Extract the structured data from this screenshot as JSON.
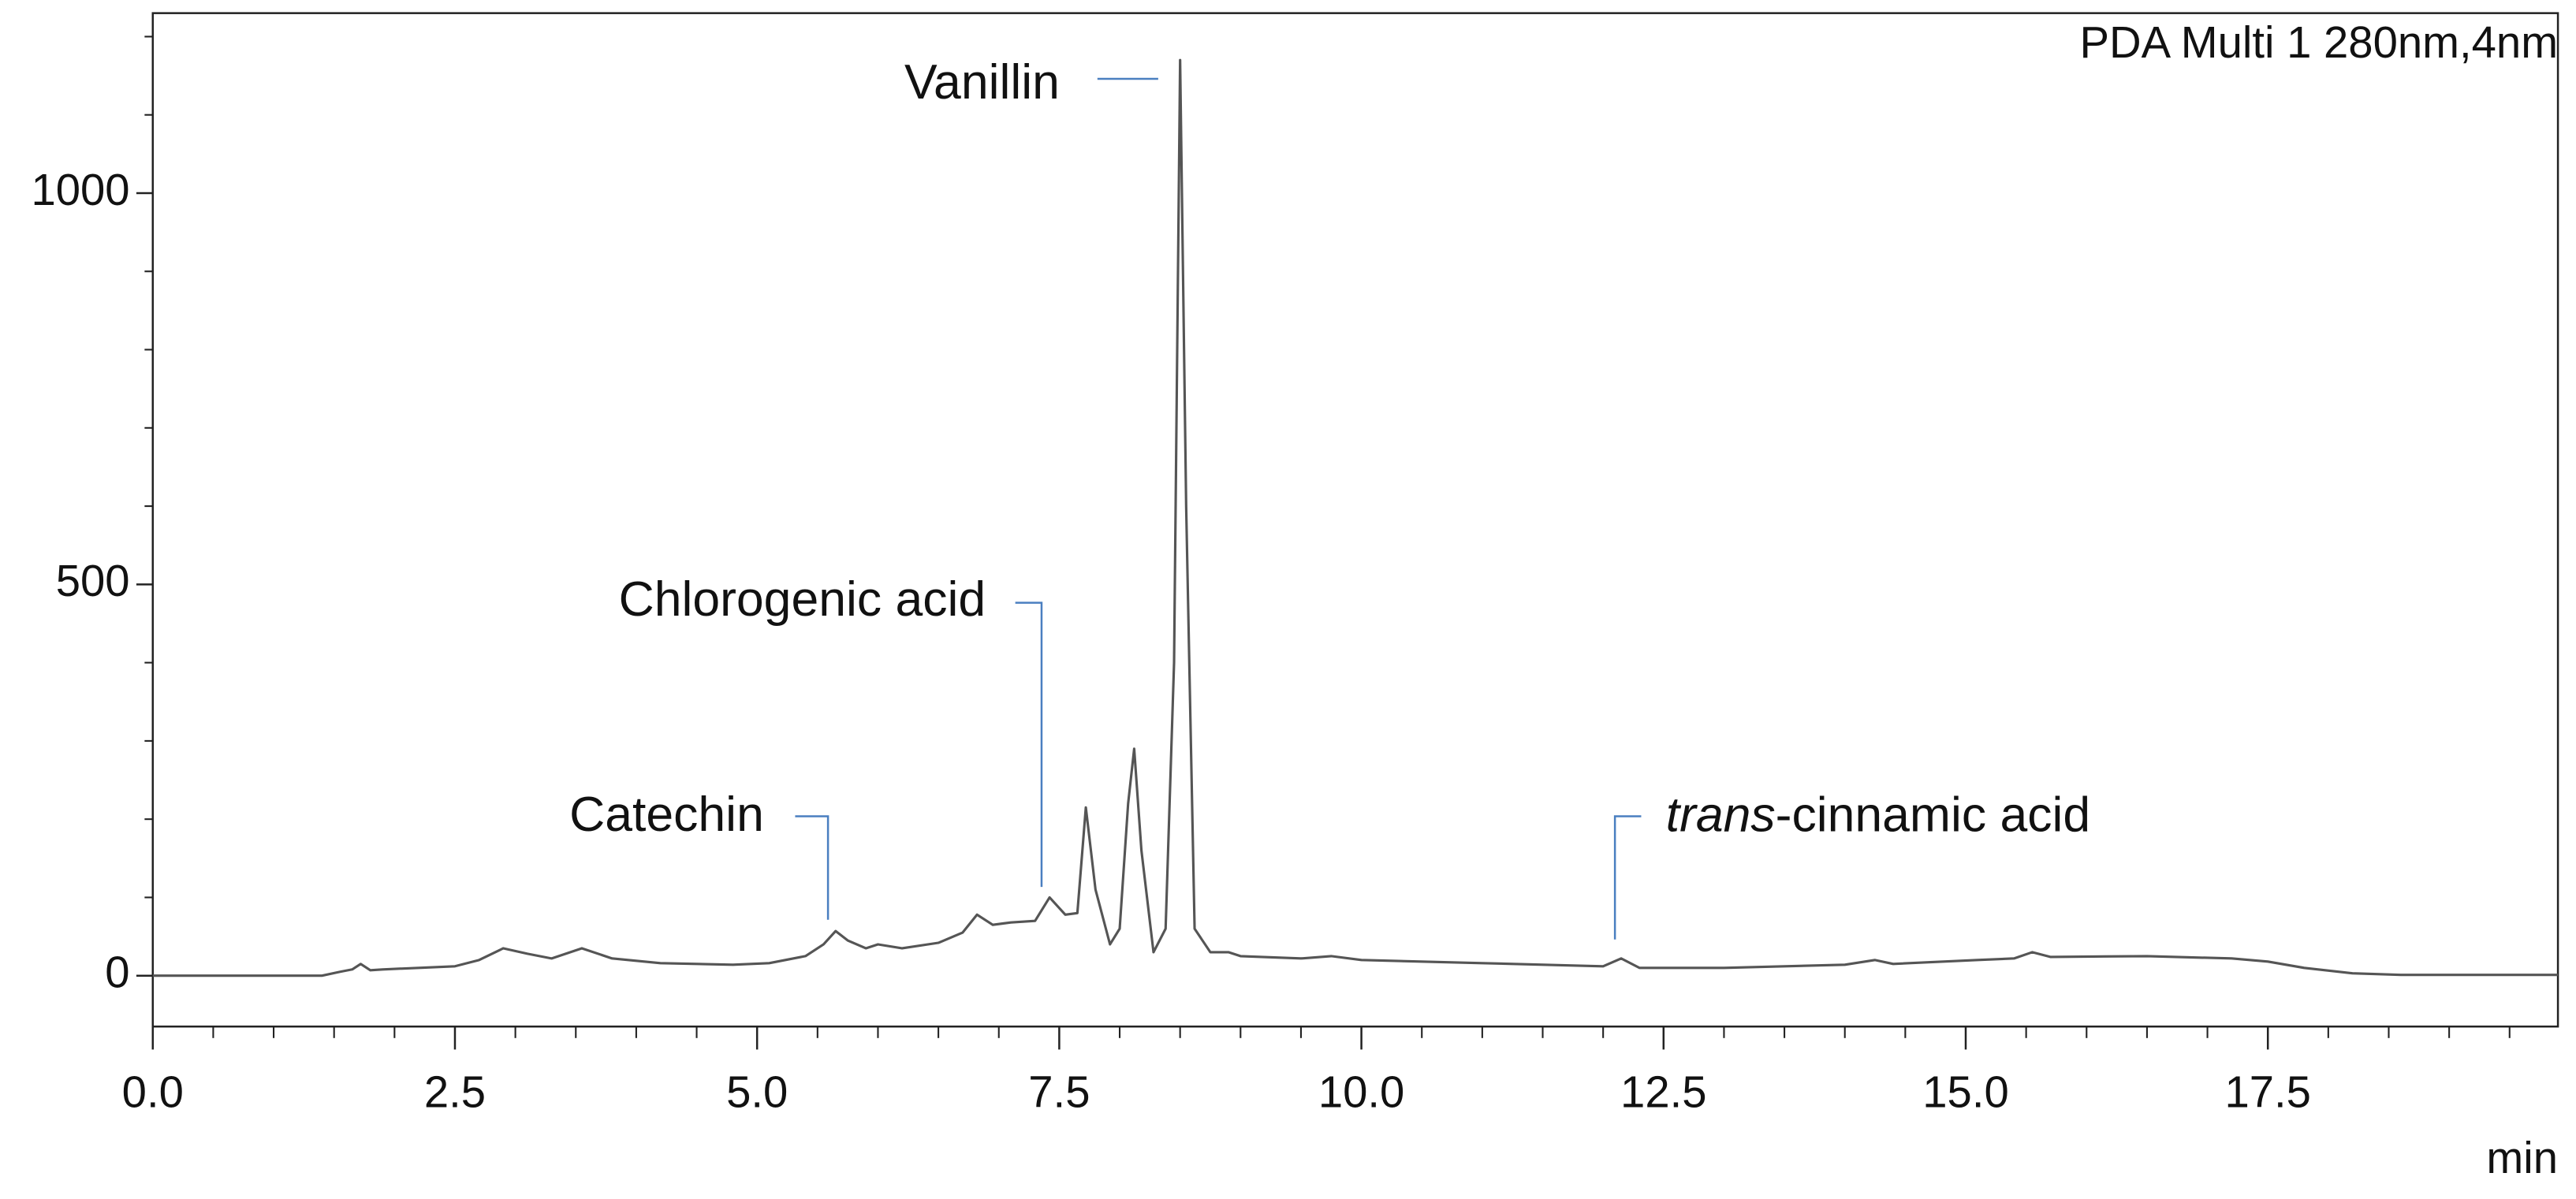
{
  "chart_data": {
    "type": "line",
    "x_label": "min",
    "x": [
      0,
      1.4,
      1.55,
      1.65,
      1.72,
      1.8,
      1.9,
      2.2,
      2.5,
      2.7,
      2.9,
      3.1,
      3.3,
      3.55,
      3.8,
      4.2,
      4.8,
      5.1,
      5.4,
      5.55,
      5.65,
      5.75,
      5.9,
      6.0,
      6.2,
      6.5,
      6.7,
      6.82,
      6.95,
      7.1,
      7.3,
      7.42,
      7.55,
      7.65,
      7.72,
      7.8,
      7.92,
      8.0,
      8.07,
      8.12,
      8.18,
      8.28,
      8.38,
      8.45,
      8.5,
      8.55,
      8.62,
      8.75,
      8.9,
      9.0,
      9.5,
      9.75,
      10.0,
      11.0,
      12.0,
      12.15,
      12.3,
      13.0,
      14.0,
      14.25,
      14.4,
      15.1,
      15.4,
      15.55,
      15.7,
      16.5,
      17.2,
      17.5,
      17.8,
      18.2,
      18.6,
      19.9
    ],
    "series": [
      {
        "name": "PDA Multi 1 280nm,4nm",
        "color": "#555555",
        "values": [
          0,
          0,
          5,
          8,
          15,
          7,
          8,
          10,
          12,
          20,
          35,
          28,
          22,
          35,
          22,
          16,
          14,
          16,
          25,
          40,
          57,
          45,
          35,
          40,
          35,
          42,
          55,
          78,
          65,
          68,
          70,
          100,
          78,
          80,
          215,
          110,
          40,
          60,
          220,
          290,
          160,
          30,
          60,
          400,
          1170,
          600,
          60,
          30,
          30,
          25,
          22,
          25,
          20,
          16,
          12,
          22,
          10,
          10,
          14,
          20,
          15,
          20,
          22,
          30,
          24,
          25,
          22,
          18,
          10,
          3,
          1,
          1
        ]
      }
    ],
    "xlim": [
      0,
      19.9
    ],
    "ylim": [
      -65,
      1230
    ],
    "xticks": [
      {
        "value": 0,
        "label": "0.0"
      },
      2.5,
      {
        "value": 5,
        "label": "5.0"
      },
      7.5,
      {
        "value": 10,
        "label": "10.0"
      },
      12.5,
      {
        "value": 15,
        "label": "15.0"
      },
      17.5
    ],
    "xticks_minor": [
      0.5,
      1,
      1.5,
      2,
      3,
      3.5,
      4,
      4.5,
      5.5,
      6,
      6.5,
      7,
      8,
      8.5,
      9,
      9.5,
      10.5,
      11,
      11.5,
      12,
      13,
      13.5,
      14,
      14.5,
      15.5,
      16,
      16.5,
      17,
      18,
      18.5,
      19,
      19.5
    ],
    "yticks": [
      0,
      500,
      1000
    ],
    "yticks_minor": [
      100,
      200,
      300,
      400,
      600,
      700,
      800,
      900,
      1100,
      1200
    ],
    "annotations": [
      {
        "text": "Vanillin"
      },
      {
        "text": "Chlorogenic acid"
      },
      {
        "text": "Catechin"
      },
      {
        "text_italic": "trans",
        "text": "-cinnamic acid"
      }
    ]
  }
}
